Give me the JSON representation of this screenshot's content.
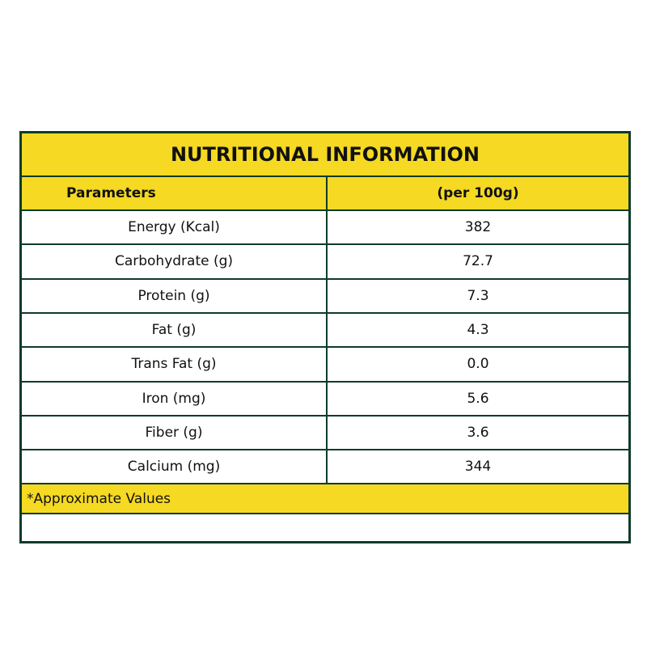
{
  "table": {
    "title": "NUTRITIONAL INFORMATION",
    "headers": [
      "Parameters",
      "(per 100g)"
    ],
    "rows": [
      [
        "Energy (Kcal)",
        "382"
      ],
      [
        "Carbohydrate (g)",
        "72.7"
      ],
      [
        "Protein (g)",
        "7.3"
      ],
      [
        "Fat (g)",
        "4.3"
      ],
      [
        "Trans Fat (g)",
        "0.0"
      ],
      [
        "Iron (mg)",
        "5.6"
      ],
      [
        "Fiber (g)",
        "3.6"
      ],
      [
        "Calcium (mg)",
        "344"
      ]
    ],
    "footnote": "*Approximate Values"
  }
}
